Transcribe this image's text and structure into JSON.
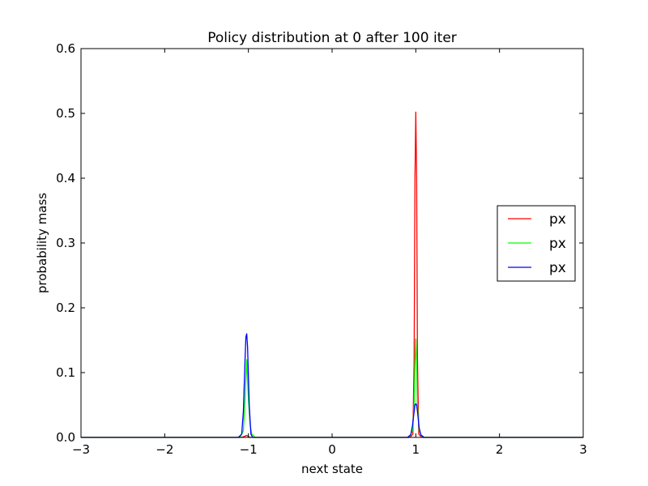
{
  "chart_data": {
    "type": "line",
    "title": "Policy distribution at 0 after 100 iter",
    "xlabel": "next state",
    "ylabel": "probability mass",
    "xlim": [
      -3,
      3
    ],
    "ylim": [
      0,
      0.6
    ],
    "xticks": [
      -3,
      -2,
      -1,
      0,
      1,
      2,
      3
    ],
    "xtick_labels": [
      "−3",
      "−2",
      "−1",
      "0",
      "1",
      "2",
      "3"
    ],
    "yticks": [
      0.0,
      0.1,
      0.2,
      0.3,
      0.4,
      0.5,
      0.6
    ],
    "ytick_labels": [
      "0.0",
      "0.1",
      "0.2",
      "0.3",
      "0.4",
      "0.5",
      "0.6"
    ],
    "grid": false,
    "legend_position": "center-right",
    "series": [
      {
        "name": "px",
        "color": "#ff0000",
        "x": [
          -3,
          -1.08,
          -1.02,
          -0.98,
          -0.94,
          0.93,
          0.965,
          0.98,
          0.99,
          1.0,
          1.01,
          1.02,
          1.035,
          1.07,
          3
        ],
        "y": [
          0,
          0,
          0.003,
          0,
          0,
          0,
          0.005,
          0.12,
          0.4,
          0.502,
          0.4,
          0.12,
          0.005,
          0,
          0
        ]
      },
      {
        "name": "px",
        "color": "#00ff00",
        "x": [
          -3,
          -1.1,
          -1.06,
          -1.04,
          -1.02,
          -1.0,
          -0.98,
          -0.96,
          -0.92,
          0.92,
          0.96,
          0.98,
          0.99,
          1.0,
          1.01,
          1.02,
          1.04,
          1.08,
          3
        ],
        "y": [
          0,
          0,
          0.01,
          0.06,
          0.12,
          0.06,
          0.02,
          0.005,
          0,
          0,
          0.01,
          0.05,
          0.11,
          0.152,
          0.11,
          0.05,
          0.01,
          0,
          0
        ]
      },
      {
        "name": "px",
        "color": "#0000ff",
        "x": [
          -3,
          -1.12,
          -1.08,
          -1.06,
          -1.04,
          -1.03,
          -1.02,
          -1.01,
          -0.99,
          -0.97,
          -0.95,
          -0.92,
          0.9,
          0.94,
          0.96,
          0.98,
          0.99,
          1.0,
          1.01,
          1.02,
          1.04,
          1.06,
          1.1,
          3
        ],
        "y": [
          0,
          0,
          0.005,
          0.04,
          0.12,
          0.155,
          0.16,
          0.14,
          0.05,
          0.005,
          0,
          0,
          0,
          0.004,
          0.018,
          0.04,
          0.05,
          0.052,
          0.05,
          0.04,
          0.015,
          0.004,
          0,
          0
        ]
      }
    ]
  }
}
